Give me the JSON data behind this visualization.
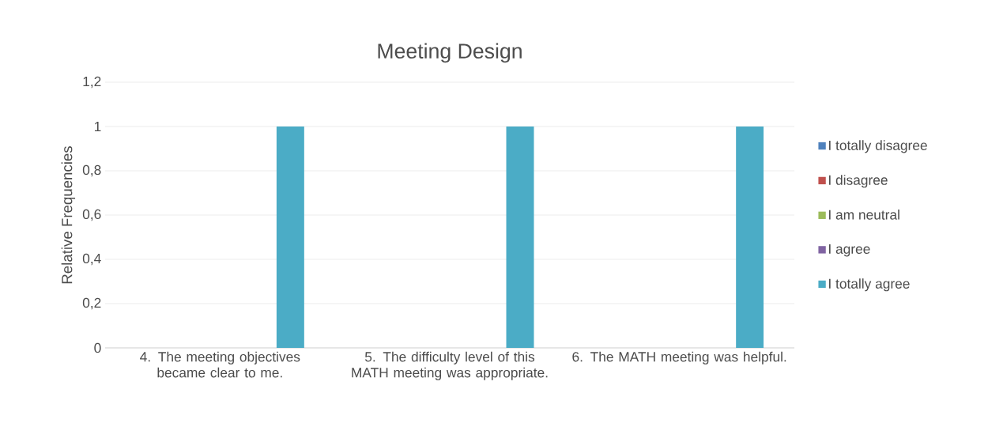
{
  "chart_data": {
    "type": "bar",
    "title": "Meeting Design",
    "ylabel": "Relative Frequencies",
    "categories": [
      "4. The meeting objectives became clear to me.",
      "5. The difficulty level of this MATH meeting was appropriate.",
      "6. The MATH meeting was helpful."
    ],
    "series": [
      {
        "name": "I totally disagree",
        "color": "#4f81bd",
        "values": [
          0,
          0,
          0
        ]
      },
      {
        "name": "I disagree",
        "color": "#c0504d",
        "values": [
          0,
          0,
          0
        ]
      },
      {
        "name": "I am neutral",
        "color": "#9bbb59",
        "values": [
          0,
          0,
          0
        ]
      },
      {
        "name": "I agree",
        "color": "#8064a2",
        "values": [
          0,
          0,
          0
        ]
      },
      {
        "name": "I totally agree",
        "color": "#4bacc6",
        "values": [
          1,
          1,
          1
        ]
      }
    ],
    "ylim": [
      0,
      1.2
    ],
    "yticks": [
      0,
      {
        "value": 0.2,
        "label": "0,2"
      },
      {
        "value": 0.4,
        "label": "0,4"
      },
      {
        "value": 0.6,
        "label": "0,6"
      },
      {
        "value": 0.8,
        "label": "0,8"
      },
      1,
      {
        "value": 1.2,
        "label": "1,2"
      }
    ],
    "grid": "y",
    "legend": "right"
  }
}
